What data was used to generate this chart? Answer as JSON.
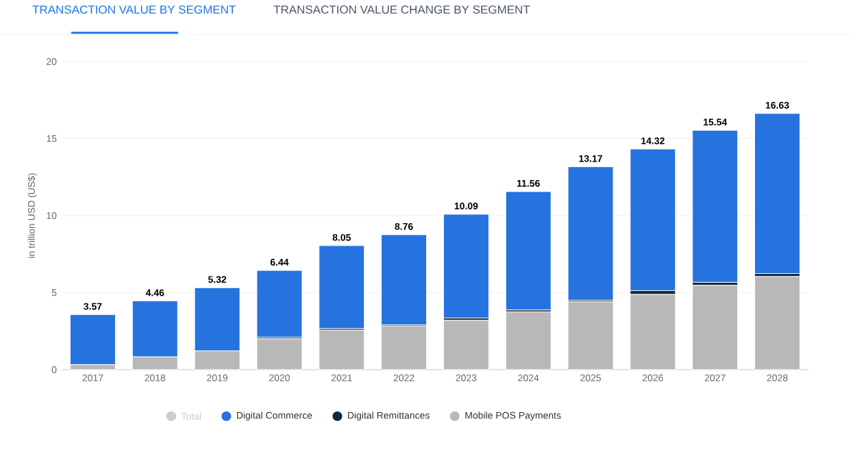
{
  "chart_data": {
    "type": "bar",
    "title": "TRANSACTION VALUE BY SEGMENT",
    "subtitle": "TRANSACTION VALUE CHANGE BY SEGMENT",
    "ylabel": "in trillion USD (US$)",
    "categories": [
      "2017",
      "2018",
      "2019",
      "2020",
      "2021",
      "2022",
      "2023",
      "2024",
      "2025",
      "2026",
      "2027",
      "2028"
    ],
    "stacked": true,
    "series": [
      {
        "name": "Mobile POS Payments",
        "color": "#b8b8b8",
        "values": [
          0.33,
          0.83,
          1.22,
          2.0,
          2.56,
          2.83,
          3.2,
          3.75,
          4.4,
          4.88,
          5.47,
          6.04
        ]
      },
      {
        "name": "Digital Remittances",
        "color": "#0f2a40",
        "values": [
          null,
          null,
          null,
          0.1,
          0.1,
          0.08,
          0.15,
          0.12,
          0.1,
          0.25,
          0.2,
          0.2
        ]
      },
      {
        "name": "Digital Commerce",
        "color": "#2672de",
        "values": [
          3.24,
          3.63,
          4.1,
          4.34,
          5.39,
          5.85,
          6.74,
          7.69,
          8.67,
          9.19,
          9.87,
          10.39
        ]
      },
      {
        "name": "Total",
        "color": "#cccccc",
        "values": [
          null,
          null,
          null,
          null,
          null,
          null,
          null,
          null,
          null,
          null,
          null,
          null
        ]
      }
    ],
    "totals": [
      "3.57",
      "4.46",
      "5.32",
      "6.44",
      "8.05",
      "8.76",
      "10.09",
      "11.56",
      "13.17",
      "14.32",
      "15.54",
      "16.63"
    ],
    "ylim": [
      0,
      20
    ],
    "yticks": [
      0,
      5,
      10,
      15,
      20
    ],
    "grid": "y",
    "legend": "bottom"
  }
}
